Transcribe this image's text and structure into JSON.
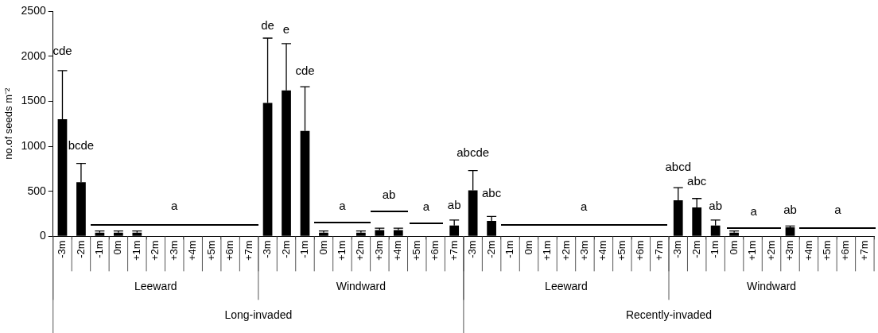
{
  "chart_data": {
    "type": "bar",
    "ylabel": "no.of seeds m⁻²",
    "categories": [
      "-3m",
      "-2m",
      "-1m",
      "0m",
      "+1m",
      "+2m",
      "+3m",
      "+4m",
      "+5m",
      "+6m",
      "+7m",
      "-3m",
      "-2m",
      "-1m",
      "0m",
      "+1m",
      "+2m",
      "+3m",
      "+4m",
      "+5m",
      "+6m",
      "+7m",
      "-3m",
      "-2m",
      "-1m",
      "0m",
      "+1m",
      "+2m",
      "+3m",
      "+4m",
      "+5m",
      "+6m",
      "+7m",
      "-3m",
      "-2m",
      "-1m",
      "0m",
      "+1m",
      "+2m",
      "+3m",
      "+4m",
      "+5m",
      "+6m",
      "+7m"
    ],
    "values": [
      1300,
      600,
      40,
      40,
      40,
      0,
      0,
      0,
      0,
      0,
      0,
      1480,
      1620,
      1170,
      40,
      0,
      40,
      70,
      70,
      0,
      0,
      120,
      510,
      170,
      0,
      0,
      0,
      0,
      0,
      0,
      0,
      0,
      0,
      400,
      320,
      120,
      40,
      0,
      0,
      100,
      0,
      0,
      0,
      0
    ],
    "errors": [
      [
        1300,
        1840
      ],
      [
        600,
        810
      ],
      [
        40,
        60
      ],
      [
        40,
        60
      ],
      [
        40,
        60
      ],
      null,
      null,
      null,
      null,
      null,
      null,
      [
        1480,
        2200
      ],
      [
        1620,
        2140
      ],
      [
        1170,
        1660
      ],
      [
        40,
        60
      ],
      null,
      [
        40,
        60
      ],
      [
        70,
        90
      ],
      [
        70,
        90
      ],
      null,
      null,
      [
        120,
        180
      ],
      [
        510,
        730
      ],
      [
        170,
        220
      ],
      null,
      null,
      null,
      null,
      null,
      null,
      null,
      null,
      null,
      [
        400,
        540
      ],
      [
        320,
        420
      ],
      [
        120,
        180
      ],
      [
        40,
        60
      ],
      null,
      null,
      [
        100,
        115
      ],
      null,
      null,
      null,
      null
    ],
    "color": "#000000",
    "ylim": [
      0,
      2500
    ],
    "yticks": [
      0,
      500,
      1000,
      1500,
      2000,
      2500
    ],
    "grid": false,
    "legend": false,
    "annotations": [
      "cde",
      "bcde",
      "a",
      "de",
      "e",
      "cde",
      "a",
      "ab",
      "a",
      "ab",
      "abcde",
      "abc",
      "a",
      "abcd",
      "abc",
      "ab",
      "a",
      "ab",
      "a",
      "Leeward",
      "Windward",
      "Leeward",
      "Windward",
      "Long-invaded",
      "Recently-invaded"
    ]
  }
}
